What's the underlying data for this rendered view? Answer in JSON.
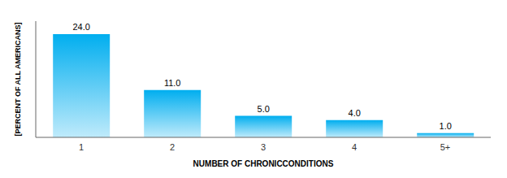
{
  "chart_data": {
    "type": "bar",
    "categories": [
      "1",
      "2",
      "3",
      "4",
      "5+"
    ],
    "values": [
      24.0,
      11.0,
      5.0,
      4.0,
      1.0
    ],
    "value_labels": [
      "24.0",
      "11.0",
      "5.0",
      "4.0",
      "1.0"
    ],
    "color": "#00AEEF",
    "xlabel": "NUMBER OF CHRONICCONDITIONS",
    "ylabel": "[PERCENT OF ALL AMERICANS]",
    "ylim": [
      0,
      27
    ],
    "data_labels": true,
    "tick_labels": "x",
    "grid": false
  }
}
